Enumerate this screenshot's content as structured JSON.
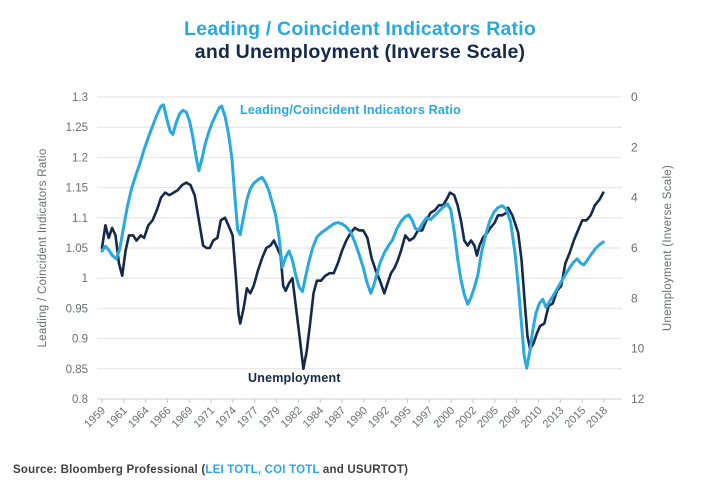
{
  "title": {
    "line1": "Leading / Coincident Indicators Ratio",
    "line2": "and Unemployment (Inverse Scale)"
  },
  "colors": {
    "ratio_blue": "#29A9E1",
    "unemployment_navy": "#14294B",
    "gridline": "#E2E2E2",
    "axis_line": "#CFCFCF",
    "tick_text": "#6A6E71",
    "source_text": "#414042"
  },
  "source": {
    "prefix": "Source: Bloomberg Professional (",
    "tickers": "LEI TOTL, COI TOTL",
    "suffix": " and USURTOT)"
  },
  "chart_data": {
    "type": "line",
    "title": "Leading / Coincident Indicators Ratio and Unemployment (Inverse Scale)",
    "grid": "horizontal",
    "legend_position": "in-plot-annotations",
    "x_axis": {
      "range": [
        1959,
        2018.58
      ],
      "labels": [
        "1959",
        "1961",
        "1964",
        "1966",
        "1969",
        "1971",
        "1974",
        "1977",
        "1979",
        "1982",
        "1984",
        "1987",
        "1990",
        "1992",
        "1995",
        "1997",
        "2000",
        "2002",
        "2005",
        "2008",
        "2010",
        "2013",
        "2015",
        "2018"
      ]
    },
    "left_axis": {
      "label": "Leading / Coincident Indicators Ratio",
      "range": [
        0.8,
        1.3
      ],
      "values": [
        1.3,
        1.25,
        1.2,
        1.15,
        1.1,
        1.05,
        1.0,
        0.95,
        0.9,
        0.85,
        0.8
      ],
      "labels": [
        "1.3",
        "1.25",
        "1.2",
        "1.15",
        "1.1",
        "1.05",
        "1",
        "0.95",
        "0.9",
        "0.85",
        "0.8"
      ]
    },
    "right_axis": {
      "label": "Unemployment (Inverse Scale)",
      "inverted": true,
      "range": [
        0,
        12
      ],
      "values": [
        0,
        2,
        4,
        6,
        8,
        10,
        12
      ],
      "labels": [
        "0",
        "2",
        "4",
        "6",
        "8",
        "10",
        "12"
      ]
    },
    "annotations": [
      {
        "text": "Leading/Coincident Indicators Ratio",
        "color": "#29A9E1"
      },
      {
        "text": "Unemployment",
        "color": "#14294B"
      }
    ],
    "series": [
      {
        "id": "unemployment-line",
        "name": "Unemployment",
        "axis": "right",
        "unit": "percent",
        "color": "#14294B",
        "width": 2.6,
        "points": [
          [
            1959.0,
            6.0
          ],
          [
            1959.4,
            5.1
          ],
          [
            1959.8,
            5.6
          ],
          [
            1960.2,
            5.2
          ],
          [
            1960.6,
            5.5
          ],
          [
            1961.0,
            6.6
          ],
          [
            1961.4,
            7.1
          ],
          [
            1961.8,
            6.1
          ],
          [
            1962.2,
            5.5
          ],
          [
            1962.7,
            5.5
          ],
          [
            1963.1,
            5.7
          ],
          [
            1963.6,
            5.5
          ],
          [
            1964.0,
            5.6
          ],
          [
            1964.5,
            5.1
          ],
          [
            1965.0,
            4.9
          ],
          [
            1965.5,
            4.5
          ],
          [
            1966.0,
            4.0
          ],
          [
            1966.5,
            3.8
          ],
          [
            1967.0,
            3.9
          ],
          [
            1967.5,
            3.8
          ],
          [
            1968.0,
            3.7
          ],
          [
            1968.5,
            3.5
          ],
          [
            1969.0,
            3.4
          ],
          [
            1969.5,
            3.5
          ],
          [
            1970.0,
            3.9
          ],
          [
            1970.5,
            4.9
          ],
          [
            1971.0,
            5.9
          ],
          [
            1971.4,
            6.0
          ],
          [
            1971.8,
            6.0
          ],
          [
            1972.2,
            5.7
          ],
          [
            1972.7,
            5.6
          ],
          [
            1973.1,
            4.9
          ],
          [
            1973.6,
            4.8
          ],
          [
            1974.0,
            5.1
          ],
          [
            1974.5,
            5.5
          ],
          [
            1974.9,
            7.2
          ],
          [
            1975.2,
            8.6
          ],
          [
            1975.4,
            9.0
          ],
          [
            1975.8,
            8.4
          ],
          [
            1976.2,
            7.6
          ],
          [
            1976.6,
            7.8
          ],
          [
            1977.0,
            7.5
          ],
          [
            1977.5,
            6.9
          ],
          [
            1978.0,
            6.4
          ],
          [
            1978.5,
            6.0
          ],
          [
            1979.0,
            5.9
          ],
          [
            1979.4,
            5.7
          ],
          [
            1979.8,
            6.0
          ],
          [
            1980.2,
            6.3
          ],
          [
            1980.5,
            7.5
          ],
          [
            1980.8,
            7.7
          ],
          [
            1981.2,
            7.4
          ],
          [
            1981.6,
            7.2
          ],
          [
            1982.0,
            8.3
          ],
          [
            1982.4,
            9.4
          ],
          [
            1982.9,
            10.8
          ],
          [
            1983.3,
            10.1
          ],
          [
            1983.7,
            9.0
          ],
          [
            1984.1,
            7.8
          ],
          [
            1984.5,
            7.3
          ],
          [
            1985.0,
            7.3
          ],
          [
            1985.5,
            7.1
          ],
          [
            1986.0,
            7.0
          ],
          [
            1986.5,
            7.0
          ],
          [
            1987.0,
            6.6
          ],
          [
            1987.5,
            6.1
          ],
          [
            1988.0,
            5.7
          ],
          [
            1988.5,
            5.4
          ],
          [
            1989.0,
            5.2
          ],
          [
            1989.5,
            5.3
          ],
          [
            1990.0,
            5.3
          ],
          [
            1990.5,
            5.6
          ],
          [
            1991.0,
            6.4
          ],
          [
            1991.5,
            6.9
          ],
          [
            1992.0,
            7.3
          ],
          [
            1992.5,
            7.8
          ],
          [
            1992.9,
            7.4
          ],
          [
            1993.3,
            7.0
          ],
          [
            1993.7,
            6.8
          ],
          [
            1994.1,
            6.5
          ],
          [
            1994.5,
            6.1
          ],
          [
            1995.0,
            5.5
          ],
          [
            1995.5,
            5.7
          ],
          [
            1996.0,
            5.6
          ],
          [
            1996.5,
            5.3
          ],
          [
            1997.0,
            5.3
          ],
          [
            1997.5,
            4.9
          ],
          [
            1998.0,
            4.6
          ],
          [
            1998.5,
            4.5
          ],
          [
            1999.0,
            4.3
          ],
          [
            1999.5,
            4.3
          ],
          [
            2000.0,
            4.0
          ],
          [
            2000.3,
            3.8
          ],
          [
            2000.8,
            3.9
          ],
          [
            2001.2,
            4.3
          ],
          [
            2001.6,
            4.9
          ],
          [
            2002.0,
            5.7
          ],
          [
            2002.4,
            5.9
          ],
          [
            2002.8,
            5.7
          ],
          [
            2003.2,
            5.9
          ],
          [
            2003.5,
            6.3
          ],
          [
            2003.8,
            5.9
          ],
          [
            2004.2,
            5.6
          ],
          [
            2004.7,
            5.4
          ],
          [
            2005.1,
            5.2
          ],
          [
            2005.6,
            5.0
          ],
          [
            2006.0,
            4.7
          ],
          [
            2006.5,
            4.7
          ],
          [
            2007.0,
            4.6
          ],
          [
            2007.2,
            4.4
          ],
          [
            2007.7,
            4.7
          ],
          [
            2008.0,
            5.0
          ],
          [
            2008.4,
            5.4
          ],
          [
            2008.8,
            6.5
          ],
          [
            2009.2,
            8.3
          ],
          [
            2009.5,
            9.5
          ],
          [
            2009.8,
            10.0
          ],
          [
            2010.2,
            9.8
          ],
          [
            2010.6,
            9.4
          ],
          [
            2011.0,
            9.1
          ],
          [
            2011.5,
            9.0
          ],
          [
            2012.0,
            8.3
          ],
          [
            2012.5,
            8.2
          ],
          [
            2013.0,
            7.7
          ],
          [
            2013.5,
            7.5
          ],
          [
            2014.0,
            6.6
          ],
          [
            2014.5,
            6.2
          ],
          [
            2015.0,
            5.7
          ],
          [
            2015.5,
            5.3
          ],
          [
            2016.0,
            4.9
          ],
          [
            2016.5,
            4.9
          ],
          [
            2017.0,
            4.7
          ],
          [
            2017.5,
            4.3
          ],
          [
            2018.0,
            4.1
          ],
          [
            2018.5,
            3.8
          ]
        ]
      },
      {
        "id": "ratio-line",
        "name": "Leading/Coincident Indicators Ratio",
        "axis": "left",
        "unit": "ratio",
        "color": "#29A9E1",
        "width": 3,
        "points": [
          [
            1959.0,
            1.045
          ],
          [
            1959.4,
            1.053
          ],
          [
            1959.8,
            1.047
          ],
          [
            1960.2,
            1.038
          ],
          [
            1960.7,
            1.032
          ],
          [
            1961.1,
            1.048
          ],
          [
            1961.5,
            1.08
          ],
          [
            1962.0,
            1.118
          ],
          [
            1962.5,
            1.148
          ],
          [
            1963.0,
            1.17
          ],
          [
            1963.5,
            1.19
          ],
          [
            1964.0,
            1.213
          ],
          [
            1964.5,
            1.233
          ],
          [
            1965.0,
            1.252
          ],
          [
            1965.5,
            1.27
          ],
          [
            1966.0,
            1.285
          ],
          [
            1966.3,
            1.287
          ],
          [
            1966.7,
            1.263
          ],
          [
            1967.1,
            1.243
          ],
          [
            1967.4,
            1.238
          ],
          [
            1967.8,
            1.257
          ],
          [
            1968.2,
            1.272
          ],
          [
            1968.6,
            1.278
          ],
          [
            1969.0,
            1.275
          ],
          [
            1969.4,
            1.26
          ],
          [
            1969.8,
            1.232
          ],
          [
            1970.2,
            1.198
          ],
          [
            1970.5,
            1.178
          ],
          [
            1970.9,
            1.2
          ],
          [
            1971.3,
            1.225
          ],
          [
            1971.7,
            1.243
          ],
          [
            1972.1,
            1.258
          ],
          [
            1972.5,
            1.27
          ],
          [
            1972.9,
            1.282
          ],
          [
            1973.2,
            1.285
          ],
          [
            1973.6,
            1.268
          ],
          [
            1974.0,
            1.24
          ],
          [
            1974.4,
            1.2
          ],
          [
            1974.8,
            1.13
          ],
          [
            1975.1,
            1.08
          ],
          [
            1975.4,
            1.072
          ],
          [
            1975.8,
            1.102
          ],
          [
            1976.2,
            1.13
          ],
          [
            1976.6,
            1.148
          ],
          [
            1977.0,
            1.157
          ],
          [
            1977.5,
            1.163
          ],
          [
            1978.0,
            1.167
          ],
          [
            1978.4,
            1.158
          ],
          [
            1978.8,
            1.145
          ],
          [
            1979.2,
            1.125
          ],
          [
            1979.6,
            1.105
          ],
          [
            1980.0,
            1.07
          ],
          [
            1980.4,
            1.018
          ],
          [
            1980.8,
            1.035
          ],
          [
            1981.2,
            1.045
          ],
          [
            1981.6,
            1.03
          ],
          [
            1982.0,
            1.005
          ],
          [
            1982.4,
            0.985
          ],
          [
            1982.8,
            0.978
          ],
          [
            1983.2,
            1.005
          ],
          [
            1983.6,
            1.03
          ],
          [
            1984.0,
            1.05
          ],
          [
            1984.5,
            1.068
          ],
          [
            1985.0,
            1.075
          ],
          [
            1985.5,
            1.08
          ],
          [
            1986.0,
            1.085
          ],
          [
            1986.5,
            1.09
          ],
          [
            1987.0,
            1.092
          ],
          [
            1987.5,
            1.09
          ],
          [
            1988.0,
            1.085
          ],
          [
            1988.5,
            1.076
          ],
          [
            1989.0,
            1.06
          ],
          [
            1989.5,
            1.04
          ],
          [
            1990.0,
            1.018
          ],
          [
            1990.4,
            0.995
          ],
          [
            1990.9,
            0.975
          ],
          [
            1991.3,
            0.99
          ],
          [
            1991.7,
            1.01
          ],
          [
            1992.0,
            1.025
          ],
          [
            1992.5,
            1.042
          ],
          [
            1993.0,
            1.054
          ],
          [
            1993.5,
            1.064
          ],
          [
            1994.0,
            1.082
          ],
          [
            1994.5,
            1.094
          ],
          [
            1995.0,
            1.102
          ],
          [
            1995.4,
            1.105
          ],
          [
            1995.8,
            1.096
          ],
          [
            1996.2,
            1.082
          ],
          [
            1996.6,
            1.08
          ],
          [
            1997.0,
            1.09
          ],
          [
            1997.5,
            1.1
          ],
          [
            1998.0,
            1.097
          ],
          [
            1998.5,
            1.104
          ],
          [
            1999.0,
            1.111
          ],
          [
            1999.5,
            1.118
          ],
          [
            2000.0,
            1.123
          ],
          [
            2000.4,
            1.113
          ],
          [
            2000.8,
            1.078
          ],
          [
            2001.2,
            1.033
          ],
          [
            2001.6,
            0.998
          ],
          [
            2002.0,
            0.973
          ],
          [
            2002.4,
            0.957
          ],
          [
            2002.8,
            0.968
          ],
          [
            2003.2,
            0.985
          ],
          [
            2003.6,
            1.005
          ],
          [
            2004.0,
            1.04
          ],
          [
            2004.5,
            1.07
          ],
          [
            2005.0,
            1.094
          ],
          [
            2005.5,
            1.109
          ],
          [
            2006.0,
            1.117
          ],
          [
            2006.5,
            1.12
          ],
          [
            2007.0,
            1.114
          ],
          [
            2007.5,
            1.093
          ],
          [
            2008.0,
            1.043
          ],
          [
            2008.4,
            0.988
          ],
          [
            2008.8,
            0.922
          ],
          [
            2009.1,
            0.872
          ],
          [
            2009.4,
            0.851
          ],
          [
            2009.8,
            0.88
          ],
          [
            2010.1,
            0.912
          ],
          [
            2010.5,
            0.942
          ],
          [
            2010.9,
            0.958
          ],
          [
            2011.3,
            0.965
          ],
          [
            2011.7,
            0.952
          ],
          [
            2012.1,
            0.961
          ],
          [
            2012.6,
            0.972
          ],
          [
            2013.0,
            0.982
          ],
          [
            2013.5,
            0.994
          ],
          [
            2014.0,
            1.006
          ],
          [
            2014.5,
            1.017
          ],
          [
            2015.0,
            1.027
          ],
          [
            2015.4,
            1.032
          ],
          [
            2015.8,
            1.025
          ],
          [
            2016.2,
            1.022
          ],
          [
            2016.6,
            1.03
          ],
          [
            2017.0,
            1.038
          ],
          [
            2017.5,
            1.048
          ],
          [
            2018.0,
            1.055
          ],
          [
            2018.5,
            1.06
          ]
        ]
      }
    ]
  }
}
